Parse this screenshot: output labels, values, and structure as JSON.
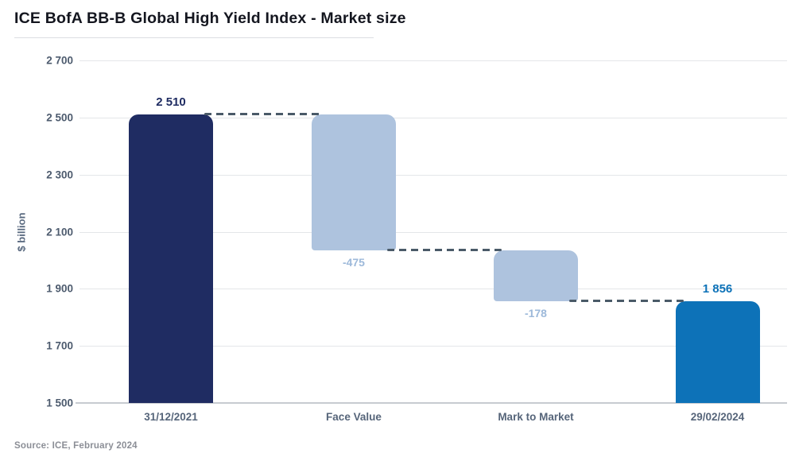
{
  "header": {
    "title": "ICE BofA BB-B Global High Yield Index - Market size"
  },
  "footer": {
    "source": "Source: ICE, February 2024"
  },
  "chart_data": {
    "type": "bar",
    "subtype": "waterfall",
    "title": "ICE BofA BB-B Global High Yield Index - Market size",
    "xlabel": "",
    "ylabel": "$ billion",
    "ylim": [
      1500,
      2700
    ],
    "grid": true,
    "legend": false,
    "yticks": [
      {
        "value": 2700,
        "label": "2 700"
      },
      {
        "value": 2500,
        "label": "2 500"
      },
      {
        "value": 2300,
        "label": "2 300"
      },
      {
        "value": 2100,
        "label": "2 100"
      },
      {
        "value": 1900,
        "label": "1 900"
      },
      {
        "value": 1700,
        "label": "1 700"
      },
      {
        "value": 1500,
        "label": "1 500"
      }
    ],
    "categories": [
      "31/12/2021",
      "Face Value",
      "Mark to Market",
      "29/02/2024"
    ],
    "bars": [
      {
        "category": "31/12/2021",
        "kind": "total",
        "value": 2510,
        "value_label": "2 510",
        "color": "#1f2c62",
        "label_color": "#1f2c62"
      },
      {
        "category": "Face Value",
        "kind": "delta",
        "value": -475,
        "value_label": "-475",
        "color": "#aec3de",
        "label_color": "#9db9da"
      },
      {
        "category": "Mark to Market",
        "kind": "delta",
        "value": -178,
        "value_label": "-178",
        "color": "#aec3de",
        "label_color": "#9db9da"
      },
      {
        "category": "29/02/2024",
        "kind": "total",
        "value": 1856,
        "value_label": "1 856",
        "color": "#0d72b8",
        "label_color": "#0d72b8"
      }
    ],
    "connector_color": "#4a5a68",
    "colors": {
      "navy": "#1f2c62",
      "light_blue": "#aec3de",
      "blue": "#0d72b8",
      "gridline": "#e4e6e9",
      "axis_line": "#c7cbd0",
      "axis_text": "#56657a"
    }
  }
}
